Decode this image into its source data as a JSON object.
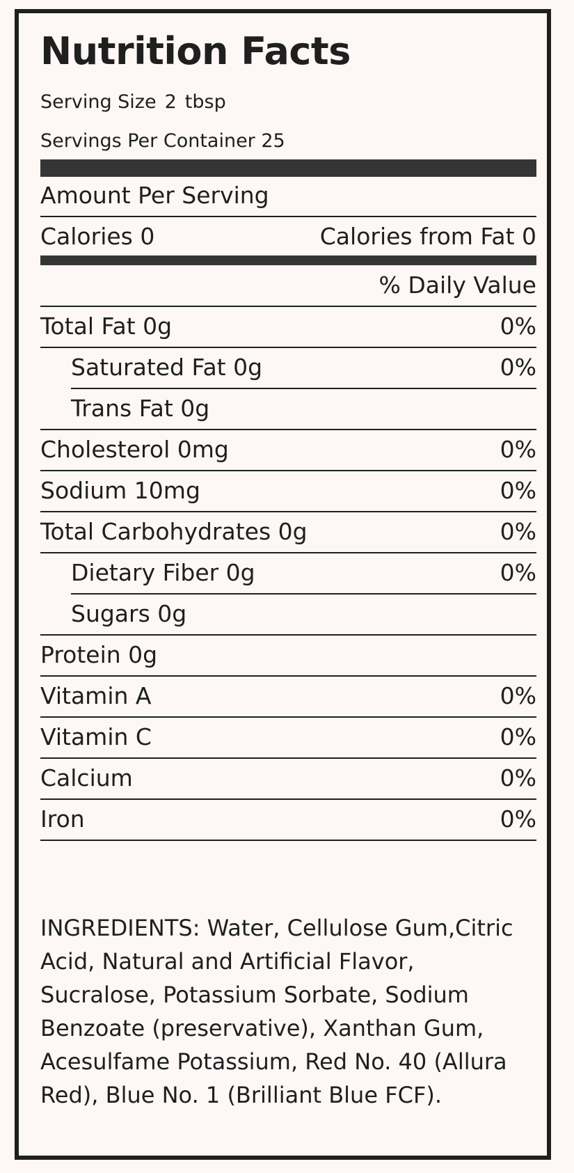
{
  "title": "Nutrition Facts",
  "serving": {
    "size_label": "Serving Size",
    "size_value": "2",
    "size_unit": "tbsp",
    "per_container": "Servings Per Container 25"
  },
  "amount_per_serving": "Amount Per Serving",
  "calories": "Calories 0",
  "calories_from_fat": "Calories from Fat 0",
  "daily_value_header": "% Daily Value",
  "nutrients": [
    {
      "name": "Total Fat 0g",
      "dv": "0%"
    },
    {
      "name": "Saturated Fat 0g",
      "dv": "0%"
    },
    {
      "name": "Trans Fat 0g",
      "dv": ""
    },
    {
      "name": "Cholesterol 0mg",
      "dv": "0%"
    },
    {
      "name": "Sodium 10mg",
      "dv": "0%"
    },
    {
      "name": "Total Carbohydrates 0g",
      "dv": "0%"
    },
    {
      "name": "Dietary Fiber 0g",
      "dv": "0%"
    },
    {
      "name": "Sugars 0g",
      "dv": ""
    },
    {
      "name": "Protein 0g",
      "dv": ""
    },
    {
      "name": "Vitamin A",
      "dv": "0%"
    },
    {
      "name": "Vitamin C",
      "dv": "0%"
    },
    {
      "name": "Calcium",
      "dv": "0%"
    },
    {
      "name": "Iron",
      "dv": "0%"
    }
  ],
  "ingredients": "INGREDIENTS: Water, Cellulose Gum,Citric Acid, Natural and Artificial Flavor, Sucralose, Potassium Sorbate, Sodium Benzoate (preservative), Xanthan Gum, Acesulfame Potassium, Red No. 40 (Allura Red), Blue No. 1 (Brilliant Blue FCF)."
}
